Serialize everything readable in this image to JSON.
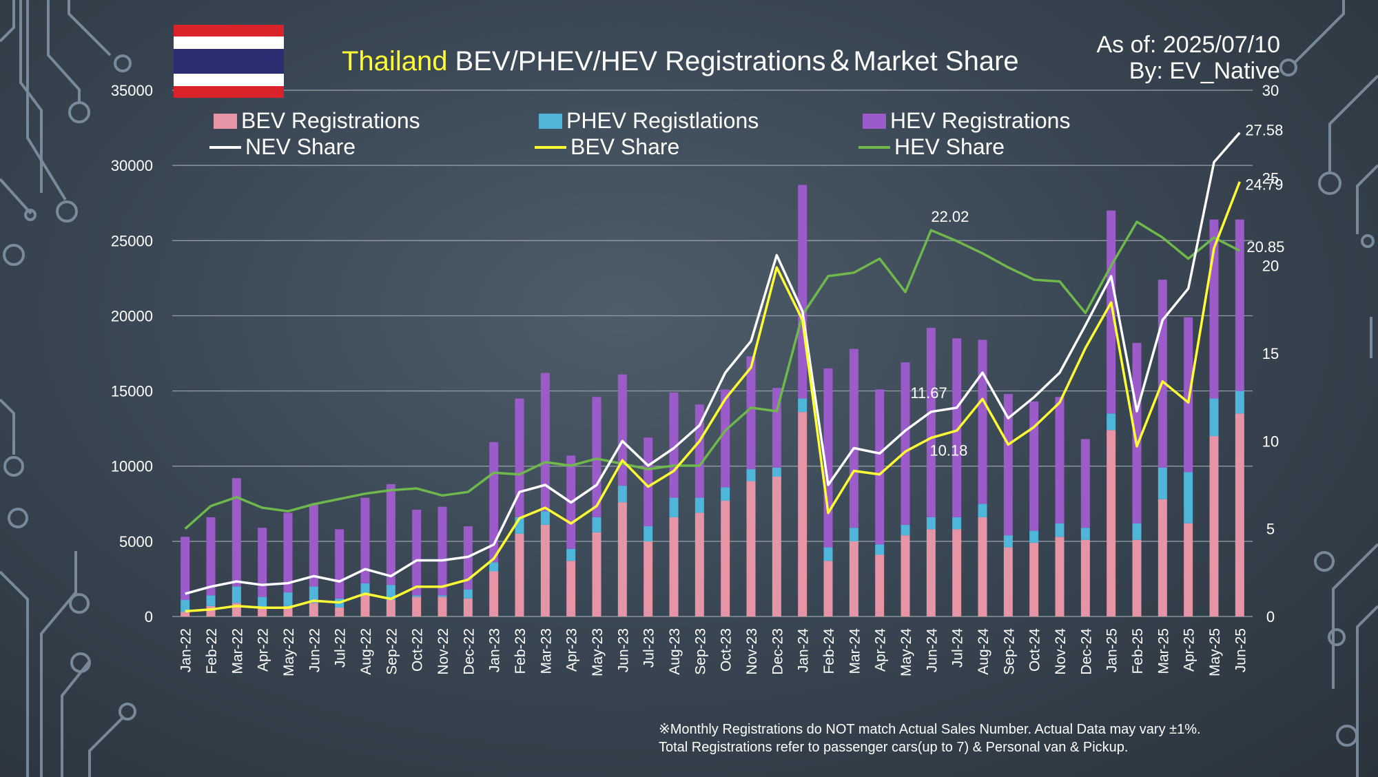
{
  "title": {
    "country": "Thailand",
    "rest": " BEV/PHEV/HEV Registrations＆Market Share"
  },
  "asof": {
    "date_line": "As of: 2025/07/10",
    "by_line": "By: EV_Native"
  },
  "footnote": {
    "line1": "※Monthly Registrations do NOT match Actual Sales Number. Actual Data may vary ±1%.",
    "line2": "Total Registrations refer to passenger cars(up to 7) & Personal van & Pickup."
  },
  "colors": {
    "bev": "#e695a6",
    "phev": "#4fb6d9",
    "hev": "#9b5bc9",
    "nev_share": "#ffffff",
    "bev_share": "#ffff33",
    "hev_share": "#6fb84b",
    "grid": "#9aa3ab"
  },
  "chart_data": {
    "type": "bar",
    "stacked": true,
    "categories": [
      "Jan-22",
      "Feb-22",
      "Mar-22",
      "Apr-22",
      "May-22",
      "Jun-22",
      "Jul-22",
      "Aug-22",
      "Sep-22",
      "Oct-22",
      "Nov-22",
      "Dec-22",
      "Jan-23",
      "Feb-23",
      "Mar-23",
      "Apr-23",
      "May-23",
      "Jun-23",
      "Jul-23",
      "Aug-23",
      "Sep-23",
      "Oct-23",
      "Nov-23",
      "Dec-23",
      "Jan-24",
      "Feb-24",
      "Mar-24",
      "Apr-24",
      "May-24",
      "Jun-24",
      "Jul-24",
      "Aug-24",
      "Sep-24",
      "Oct-24",
      "Nov-24",
      "Dec-24",
      "Jan-25",
      "Feb-25",
      "Mar-25",
      "Apr-25",
      "May-25",
      "Jun-25"
    ],
    "y_left": {
      "min": 0,
      "max": 35000,
      "ticks": [
        0,
        5000,
        10000,
        15000,
        20000,
        25000,
        30000,
        35000
      ]
    },
    "y_right": {
      "min": 0,
      "max": 30,
      "ticks": [
        0,
        5,
        10,
        15,
        20,
        25,
        30
      ]
    },
    "series": [
      {
        "name": "BEV Registrations",
        "axis": "left",
        "kind": "bar",
        "values": [
          300,
          700,
          900,
          600,
          700,
          900,
          600,
          1500,
          1100,
          1300,
          1300,
          1200,
          3000,
          5500,
          6100,
          3700,
          5600,
          7600,
          5000,
          6600,
          6900,
          7700,
          9000,
          9300,
          13600,
          3700,
          5000,
          4100,
          5400,
          5800,
          5800,
          6600,
          4600,
          4900,
          5300,
          5100,
          12400,
          5100,
          7800,
          6200,
          12000,
          13500
        ]
      },
      {
        "name": "PHEV Registlations",
        "axis": "left",
        "kind": "bar",
        "values": [
          800,
          700,
          1100,
          700,
          900,
          1100,
          600,
          700,
          1000,
          100,
          100,
          600,
          600,
          1100,
          900,
          800,
          1000,
          1100,
          1000,
          1300,
          1000,
          900,
          800,
          600,
          900,
          900,
          900,
          700,
          700,
          800,
          800,
          900,
          800,
          800,
          900,
          800,
          1100,
          1100,
          2100,
          3400,
          2500,
          1500
        ]
      },
      {
        "name": "HEV Registrations",
        "axis": "left",
        "kind": "bar",
        "values": [
          4200,
          5200,
          7200,
          4600,
          5300,
          5500,
          4600,
          5700,
          6700,
          5700,
          5900,
          4200,
          8000,
          7900,
          9200,
          6200,
          8000,
          7400,
          5900,
          7000,
          6200,
          6500,
          7500,
          5300,
          14200,
          11900,
          11900,
          10300,
          10800,
          12600,
          11900,
          10900,
          9400,
          8600,
          8400,
          5900,
          13500,
          12000,
          12500,
          10300,
          11900,
          11400
        ]
      },
      {
        "name": "NEV Share",
        "axis": "right",
        "kind": "line",
        "values": [
          1.3,
          1.7,
          2.0,
          1.8,
          1.9,
          2.3,
          2.0,
          2.7,
          2.3,
          3.2,
          3.2,
          3.4,
          4.1,
          7.1,
          7.5,
          6.5,
          7.5,
          10.0,
          8.6,
          9.6,
          10.9,
          13.9,
          15.7,
          20.6,
          17.4,
          7.5,
          9.6,
          9.3,
          10.6,
          11.67,
          11.9,
          13.9,
          11.3,
          12.5,
          13.9,
          16.6,
          19.4,
          11.7,
          16.9,
          18.7,
          25.9,
          27.58
        ]
      },
      {
        "name": "BEV Share",
        "axis": "right",
        "kind": "line",
        "values": [
          0.3,
          0.4,
          0.6,
          0.5,
          0.5,
          0.9,
          0.8,
          1.3,
          1.0,
          1.7,
          1.7,
          2.1,
          3.3,
          5.6,
          6.2,
          5.3,
          6.3,
          8.9,
          7.4,
          8.3,
          10.0,
          12.4,
          14.2,
          19.9,
          16.9,
          5.9,
          8.3,
          8.1,
          9.4,
          10.18,
          10.6,
          12.4,
          9.8,
          10.8,
          12.2,
          15.3,
          17.9,
          9.7,
          13.4,
          12.2,
          21.0,
          24.79
        ]
      },
      {
        "name": "HEV Share",
        "axis": "right",
        "kind": "line",
        "values": [
          5.0,
          6.3,
          6.8,
          6.2,
          6.0,
          6.4,
          6.7,
          7.0,
          7.2,
          7.3,
          6.9,
          7.1,
          8.2,
          8.1,
          8.8,
          8.6,
          9.0,
          8.7,
          8.4,
          8.6,
          8.6,
          10.6,
          11.9,
          11.7,
          17.2,
          19.4,
          19.6,
          20.4,
          18.5,
          22.02,
          21.4,
          20.7,
          19.9,
          19.2,
          19.1,
          17.3,
          20.0,
          22.5,
          21.6,
          20.4,
          21.6,
          20.85
        ]
      }
    ],
    "annotations": [
      {
        "series": "HEV Share",
        "index": 29,
        "text": "22.02"
      },
      {
        "series": "NEV Share",
        "index": 29,
        "text": "11.67"
      },
      {
        "series": "BEV Share",
        "index": 29,
        "text": "10.18"
      },
      {
        "series": "NEV Share",
        "index": 41,
        "text": "27.58"
      },
      {
        "series": "BEV Share",
        "index": 41,
        "text": "24.79"
      },
      {
        "series": "HEV Share",
        "index": 41,
        "text": "20.85"
      }
    ],
    "grid": true,
    "legend": "top"
  }
}
